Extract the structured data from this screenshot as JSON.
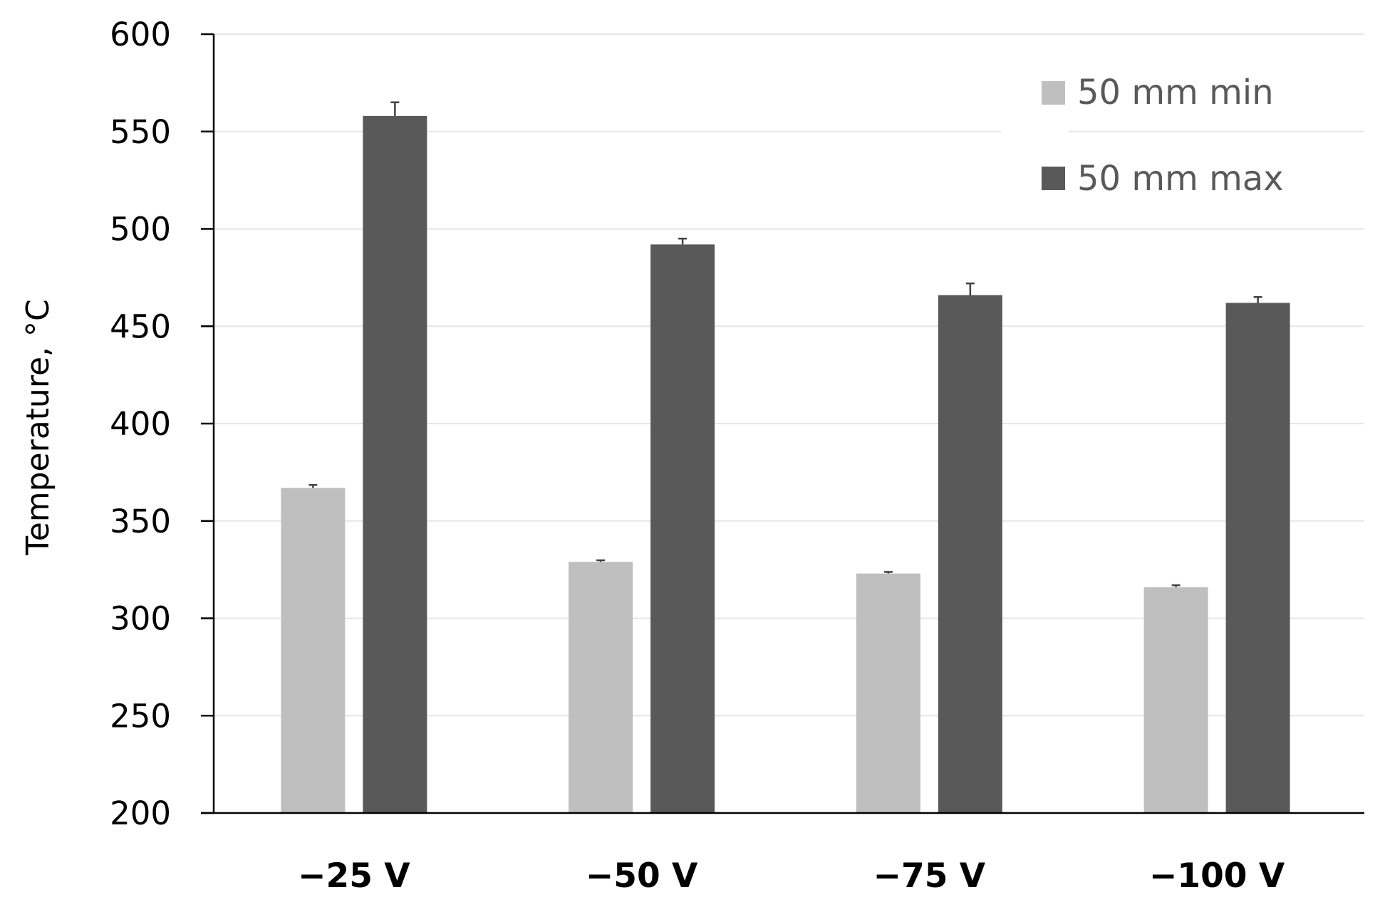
{
  "chart_data": {
    "type": "bar",
    "title": "",
    "xlabel": "",
    "ylabel": "Temperature, °C",
    "ylim": [
      200,
      600
    ],
    "yticks": [
      "200",
      "250",
      "300",
      "350",
      "400",
      "450",
      "500",
      "550",
      "600"
    ],
    "grid": true,
    "legend_position": "top-right",
    "categories": [
      "−25 V",
      "−50 V",
      "−75 V",
      "−100 V"
    ],
    "series": [
      {
        "name": "50 mm min",
        "color": "#bfbfbf",
        "values": [
          367,
          329,
          323,
          316
        ],
        "errors": [
          1.5,
          0.8,
          0.8,
          1.0
        ]
      },
      {
        "name": "50 mm max",
        "color": "#595959",
        "values": [
          558,
          492,
          466,
          462
        ],
        "errors": [
          7,
          3,
          6,
          3
        ]
      }
    ]
  }
}
